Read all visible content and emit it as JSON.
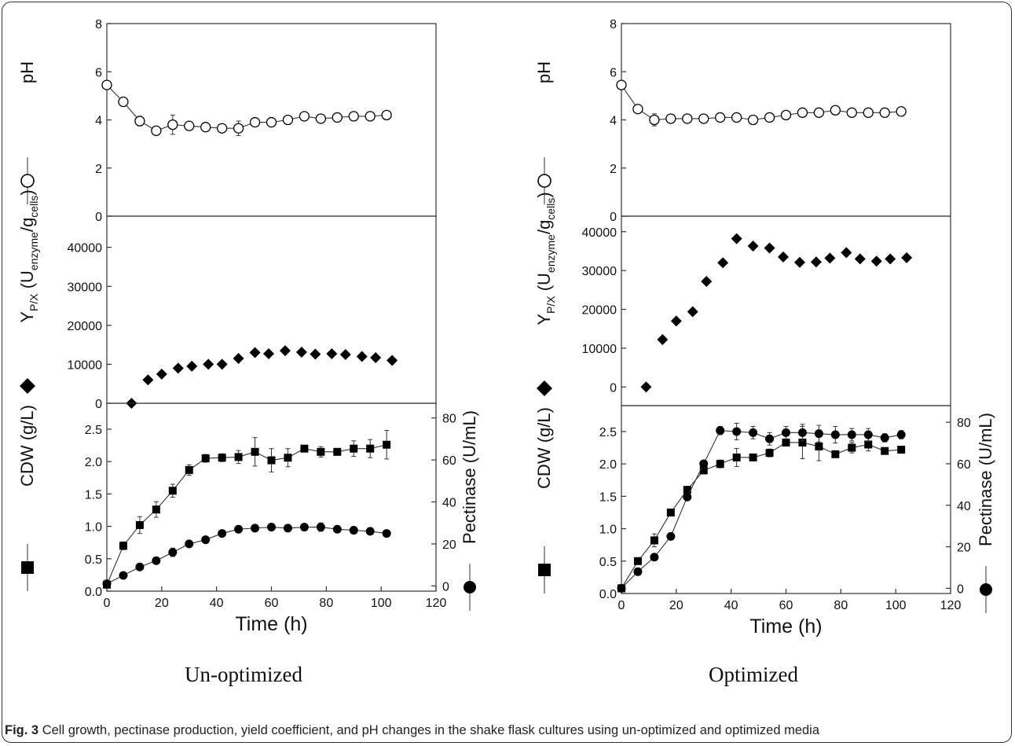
{
  "caption": {
    "label": "Fig. 3",
    "text": "Cell growth, pectinase production, yield coefficient, and pH changes in the shake flask cultures using un-optimized and optimized media"
  },
  "panels": [
    {
      "id": "unoptimized",
      "label": "Un-optimized"
    },
    {
      "id": "optimized",
      "label": "Optimized"
    }
  ],
  "colors": {
    "marker": "#000000",
    "line": "#333333",
    "frame": "#333333"
  },
  "chart_data": [
    {
      "type": "line",
      "panel": "Un-optimized",
      "xlabel": "Time (h)",
      "xlim": [
        0,
        120
      ],
      "xticks": [
        0,
        20,
        40,
        60,
        80,
        100,
        120
      ],
      "subplots": [
        {
          "name": "ph",
          "ylabel": "pH",
          "ylim": [
            0,
            8
          ],
          "yticks": [
            0,
            2,
            4,
            6,
            8
          ],
          "series": [
            {
              "name": "pH",
              "marker": "open-circle",
              "connected": true,
              "x": [
                0,
                6,
                12,
                18,
                24,
                30,
                36,
                42,
                48,
                54,
                60,
                66,
                72,
                78,
                84,
                90,
                96,
                102
              ],
              "y": [
                5.45,
                4.75,
                3.95,
                3.55,
                3.8,
                3.75,
                3.7,
                3.65,
                3.65,
                3.9,
                3.9,
                4.0,
                4.15,
                4.05,
                4.1,
                4.15,
                4.15,
                4.2
              ],
              "err": [
                0.1,
                0.1,
                0.2,
                0.15,
                0.4,
                0.15,
                0.1,
                0.1,
                0.3,
                0.15,
                0.1,
                0.1,
                0.15,
                0.1,
                0.15,
                0.1,
                0.15,
                0.1
              ]
            }
          ]
        },
        {
          "name": "yield",
          "ylabel": "Y_P/X (U_enzyme/g_cells)",
          "ylim": [
            0,
            48000
          ],
          "yticks": [
            0,
            10000,
            20000,
            30000,
            40000
          ],
          "series": [
            {
              "name": "Y_P/X",
              "marker": "diamond",
              "connected": false,
              "x": [
                9,
                15,
                20,
                26,
                31,
                37,
                42,
                48,
                54,
                59,
                65,
                71,
                76,
                82,
                87,
                93,
                98,
                104
              ],
              "y": [
                0,
                6000,
                7500,
                9000,
                9500,
                10000,
                10000,
                11500,
                13000,
                12700,
                13500,
                13100,
                12600,
                12700,
                12500,
                12000,
                11700,
                11000
              ]
            }
          ]
        },
        {
          "name": "growth",
          "ylabel": "CDW (g/L)",
          "ylim": [
            0,
            2.9
          ],
          "yticks": [
            0.0,
            0.5,
            1.0,
            1.5,
            2.0,
            2.5
          ],
          "y2label": "Pectinase (U/mL)",
          "y2lim": [
            -2.5,
            87
          ],
          "y2ticks": [
            0,
            20,
            40,
            60,
            80
          ],
          "series": [
            {
              "name": "CDW",
              "marker": "filled-square",
              "connected": true,
              "axis": "left",
              "x": [
                0,
                6,
                12,
                18,
                24,
                30,
                36,
                42,
                48,
                54,
                60,
                66,
                72,
                78,
                84,
                90,
                96,
                102
              ],
              "y": [
                0.1,
                0.7,
                1.02,
                1.26,
                1.55,
                1.87,
                2.05,
                2.06,
                2.07,
                2.15,
                2.02,
                2.06,
                2.2,
                2.15,
                2.15,
                2.2,
                2.2,
                2.26
              ],
              "err": [
                0.03,
                0.06,
                0.13,
                0.12,
                0.1,
                0.08,
                0.06,
                0.06,
                0.1,
                0.22,
                0.18,
                0.14,
                0.04,
                0.08,
                0.04,
                0.12,
                0.14,
                0.22
              ]
            },
            {
              "name": "Pectinase",
              "marker": "filled-circle",
              "connected": true,
              "axis": "right",
              "x": [
                0,
                6,
                12,
                18,
                24,
                30,
                36,
                42,
                48,
                54,
                60,
                66,
                72,
                78,
                84,
                90,
                96,
                102
              ],
              "y": [
                1,
                5,
                9,
                12,
                16,
                20,
                22,
                25,
                27,
                27.5,
                28,
                27.5,
                28,
                28,
                27,
                26.5,
                26,
                25
              ],
              "err": [
                0.5,
                0.5,
                0.5,
                1,
                2,
                1,
                1,
                1,
                1,
                1,
                1,
                1,
                1,
                2,
                1,
                1,
                1,
                1
              ]
            }
          ]
        }
      ]
    },
    {
      "type": "line",
      "panel": "Optimized",
      "xlabel": "Time (h)",
      "xlim": [
        0,
        120
      ],
      "xticks": [
        0,
        20,
        40,
        60,
        80,
        100,
        120
      ],
      "subplots": [
        {
          "name": "ph",
          "ylabel": "pH",
          "ylim": [
            0,
            8
          ],
          "yticks": [
            0,
            2,
            4,
            6,
            8
          ],
          "series": [
            {
              "name": "pH",
              "marker": "open-circle",
              "connected": true,
              "x": [
                0,
                6,
                12,
                18,
                24,
                30,
                36,
                42,
                48,
                54,
                60,
                66,
                72,
                78,
                84,
                90,
                96,
                102
              ],
              "y": [
                5.45,
                4.45,
                4.0,
                4.05,
                4.05,
                4.05,
                4.1,
                4.1,
                4.0,
                4.1,
                4.2,
                4.3,
                4.3,
                4.4,
                4.3,
                4.3,
                4.3,
                4.35
              ],
              "err": [
                0.1,
                0.1,
                0.25,
                0.1,
                0.1,
                0.1,
                0.1,
                0.1,
                0.1,
                0.1,
                0.1,
                0.1,
                0.1,
                0.1,
                0.1,
                0.1,
                0.1,
                0.1
              ]
            }
          ]
        },
        {
          "name": "yield",
          "ylabel": "Y_P/X (U_enzyme/g_cells)",
          "ylim": [
            -4800,
            44000
          ],
          "yticks": [
            0,
            10000,
            20000,
            30000,
            40000
          ],
          "series": [
            {
              "name": "Y_P/X",
              "marker": "diamond",
              "connected": false,
              "x": [
                9,
                15,
                20,
                26,
                31,
                37,
                42,
                48,
                54,
                59,
                65,
                71,
                76,
                82,
                87,
                93,
                98,
                104
              ],
              "y": [
                0,
                12200,
                17000,
                19400,
                27200,
                32000,
                38200,
                36300,
                35800,
                33500,
                32100,
                32200,
                33200,
                34600,
                33000,
                32400,
                33000,
                33300
              ]
            }
          ]
        },
        {
          "name": "growth",
          "ylabel": "CDW (g/L)",
          "ylim": [
            0,
            2.9
          ],
          "yticks": [
            0.0,
            0.5,
            1.0,
            1.5,
            2.0,
            2.5
          ],
          "y2label": "Pectinase (U/mL)",
          "y2lim": [
            -2.5,
            88
          ],
          "y2ticks": [
            0,
            20,
            40,
            60,
            80
          ],
          "series": [
            {
              "name": "CDW",
              "marker": "filled-square",
              "connected": true,
              "axis": "left",
              "x": [
                0,
                6,
                12,
                18,
                24,
                30,
                36,
                42,
                48,
                54,
                60,
                66,
                72,
                78,
                84,
                90,
                96,
                102
              ],
              "y": [
                0.08,
                0.5,
                0.82,
                1.25,
                1.6,
                1.9,
                2.0,
                2.1,
                2.1,
                2.17,
                2.33,
                2.33,
                2.27,
                2.15,
                2.25,
                2.3,
                2.2,
                2.22
              ],
              "err": [
                0.03,
                0.05,
                0.1,
                0.04,
                0.05,
                0.05,
                0.06,
                0.14,
                0.04,
                0.06,
                0.05,
                0.25,
                0.22,
                0.05,
                0.08,
                0.1,
                0.04,
                0.03
              ]
            },
            {
              "name": "Pectinase",
              "marker": "filled-circle",
              "connected": true,
              "axis": "right",
              "x": [
                0,
                6,
                12,
                18,
                24,
                30,
                36,
                42,
                48,
                54,
                60,
                66,
                72,
                78,
                84,
                90,
                96,
                102
              ],
              "y": [
                0,
                8,
                15,
                25,
                44,
                60,
                76,
                75.5,
                75,
                72,
                75,
                75,
                74.5,
                74,
                74,
                74,
                72.5,
                74
              ],
              "err": [
                1,
                1,
                1,
                1,
                1,
                1,
                2,
                4,
                3,
                3,
                3,
                4,
                4,
                4,
                3,
                3,
                2,
                2
              ]
            }
          ]
        }
      ]
    }
  ]
}
